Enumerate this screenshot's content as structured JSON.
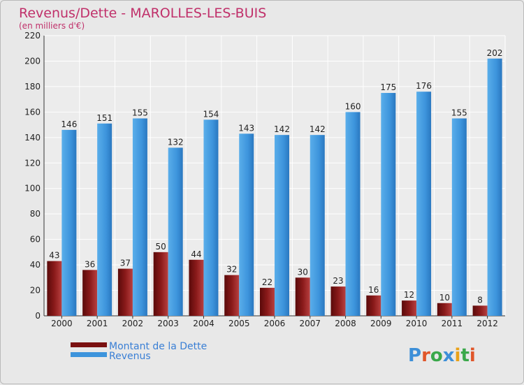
{
  "chart_data": {
    "type": "bar",
    "title": "Revenus/Dette - MAROLLES-LES-BUIS",
    "subtitle": "(en milliers d'€)",
    "categories": [
      "2000",
      "2001",
      "2002",
      "2003",
      "2004",
      "2005",
      "2006",
      "2007",
      "2008",
      "2009",
      "2010",
      "2011",
      "2012"
    ],
    "series": [
      {
        "name": "Montant de la Dette",
        "color": "#7a1010",
        "values": [
          43,
          36,
          37,
          50,
          44,
          32,
          22,
          30,
          23,
          16,
          12,
          10,
          8
        ]
      },
      {
        "name": "Revenus",
        "color": "#3d94dc",
        "values": [
          146,
          151,
          155,
          132,
          154,
          143,
          142,
          142,
          160,
          175,
          176,
          155,
          202
        ]
      }
    ],
    "ylim": [
      0,
      220
    ],
    "yticks": [
      0,
      20,
      40,
      60,
      80,
      100,
      120,
      140,
      160,
      180,
      200,
      220
    ],
    "grid": true,
    "legend_position": "bottom-left"
  },
  "logo": {
    "text": "Proxiti"
  }
}
